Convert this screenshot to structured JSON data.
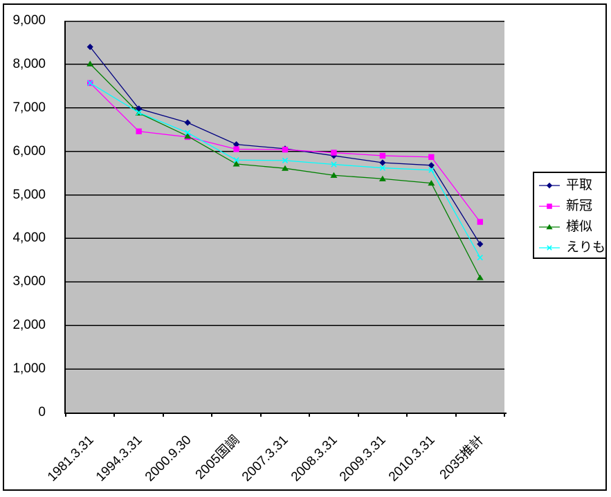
{
  "chart_data": {
    "type": "line",
    "title": "",
    "xlabel": "",
    "ylabel": "",
    "categories": [
      "1981.3.31",
      "1994.3.31",
      "2000.9.30",
      "2005国調",
      "2007.3.31",
      "2008.3.31",
      "2009.3.31",
      "2010.3.31",
      "2035推計"
    ],
    "series": [
      {
        "name": "平取",
        "color": "#000080",
        "marker": "diamond",
        "values": [
          8400,
          6980,
          6660,
          6160,
          6060,
          5900,
          5740,
          5680,
          3870
        ]
      },
      {
        "name": "新冠",
        "color": "#FF00FF",
        "marker": "square",
        "values": [
          7570,
          6460,
          6330,
          6050,
          6040,
          5970,
          5900,
          5870,
          4380
        ]
      },
      {
        "name": "様似",
        "color": "#008000",
        "marker": "triangle",
        "values": [
          8010,
          6880,
          6350,
          5710,
          5610,
          5450,
          5370,
          5270,
          3100
        ]
      },
      {
        "name": "えりも",
        "color": "#00FFFF",
        "marker": "x",
        "values": [
          7570,
          6890,
          6430,
          5800,
          5790,
          5700,
          5620,
          5570,
          3560
        ]
      }
    ],
    "ylim": [
      0,
      9000
    ],
    "ytick_step": 1000,
    "ytick_labels": [
      "0",
      "1,000",
      "2,000",
      "3,000",
      "4,000",
      "5,000",
      "6,000",
      "7,000",
      "8,000",
      "9,000"
    ],
    "grid": "horizontal",
    "grid_color": "#000000",
    "plot_bg_color": "#C0C0C0",
    "legend_position": "right"
  }
}
